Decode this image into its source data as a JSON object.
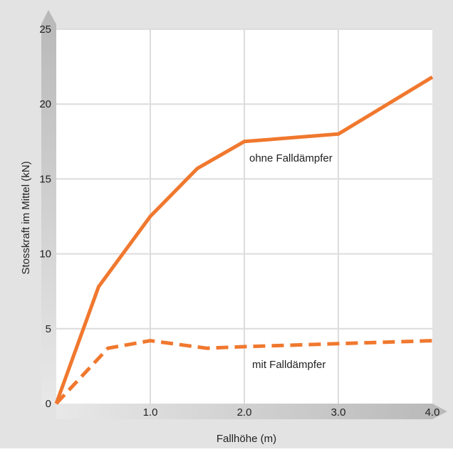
{
  "chart_data": {
    "type": "line",
    "xlabel": "Fallhöhe (m)",
    "ylabel": "Stosskraft im Mittel (kN)",
    "xlim": [
      0,
      4.0
    ],
    "ylim": [
      0,
      25
    ],
    "x_ticks": [
      "1.0",
      "2.0",
      "3.0",
      "4.0"
    ],
    "y_ticks": [
      "0",
      "5",
      "10",
      "15",
      "20",
      "25"
    ],
    "grid": true,
    "series": [
      {
        "name": "ohne Falldämpfer",
        "style": "solid",
        "color": "#f0782e",
        "x": [
          0,
          0.45,
          1.0,
          1.5,
          2.0,
          3.0,
          4.0
        ],
        "y": [
          0,
          7.8,
          12.5,
          15.7,
          17.5,
          18.0,
          21.8
        ]
      },
      {
        "name": "mit Falldämpfer",
        "style": "dashed",
        "color": "#f0782e",
        "x": [
          0,
          0.55,
          1.0,
          1.6,
          2.0,
          3.0,
          4.0
        ],
        "y": [
          0,
          3.7,
          4.2,
          3.7,
          3.8,
          4.0,
          4.2
        ]
      }
    ]
  },
  "colors": {
    "background": "#e3e3e3",
    "plot_area": "#ffffff",
    "grid": "#dcdcdc",
    "axis_arrow_light": "#e8e8e8",
    "axis_arrow_dark": "#b8b8b8"
  }
}
